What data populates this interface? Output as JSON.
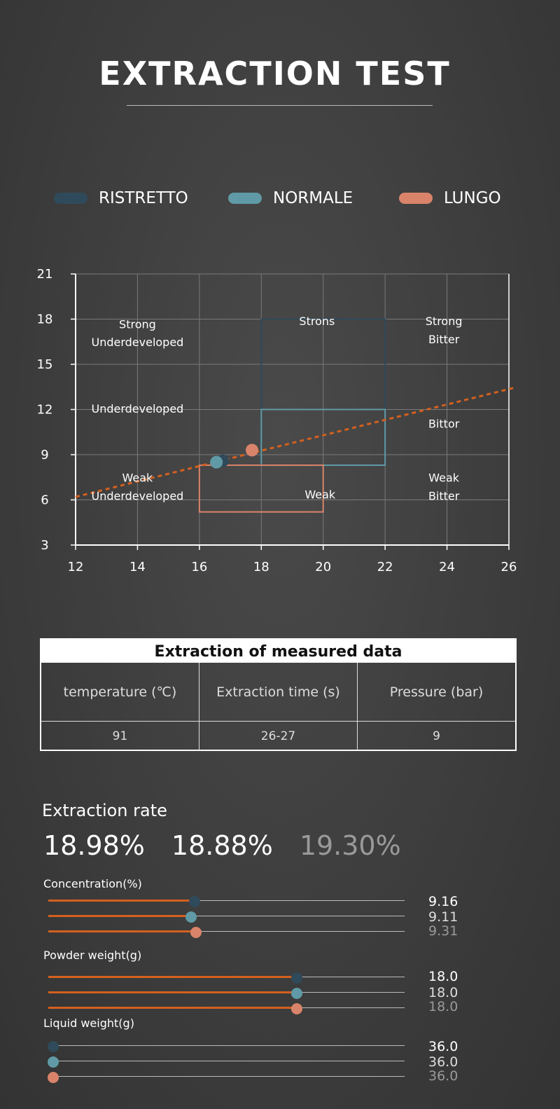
{
  "title": "EXTRACTION TEST",
  "legend": [
    {
      "label": "RISTRETTO",
      "color": "#2f4a5a"
    },
    {
      "label": "NORMALE",
      "color": "#5f9aa6"
    },
    {
      "label": "LUNGO",
      "color": "#d9846a"
    }
  ],
  "chart_data": {
    "type": "scatter",
    "xlim": [
      12,
      26
    ],
    "ylim": [
      3,
      21
    ],
    "x_ticks": [
      "12",
      "14",
      "16",
      "18",
      "20",
      "22",
      "24",
      "26"
    ],
    "y_ticks": [
      "3",
      "6",
      "9",
      "12",
      "15",
      "18",
      "21"
    ],
    "grid": true,
    "zones": [
      {
        "name": "RISTRETTO",
        "x": [
          18,
          22
        ],
        "y": [
          8.3,
          18
        ],
        "color": "#2f4a5a"
      },
      {
        "name": "NORMALE",
        "x": [
          18,
          22
        ],
        "y": [
          8.3,
          12
        ],
        "color": "#5f9aa6"
      },
      {
        "name": "LUNGO",
        "x": [
          16,
          20
        ],
        "y": [
          5.2,
          8.3
        ],
        "color": "#d9846a"
      }
    ],
    "trend_line": {
      "x": [
        12,
        26
      ],
      "y": [
        6.2,
        13.4
      ],
      "color": "#d4601e"
    },
    "points": [
      {
        "series": "RISTRETTO",
        "x": 16.75,
        "y": 8.6,
        "color": "#2f4a5a"
      },
      {
        "series": "NORMALE",
        "x": 16.55,
        "y": 8.5,
        "color": "#5f9aa6"
      },
      {
        "series": "LUNGO",
        "x": 17.7,
        "y": 9.3,
        "color": "#d9846a"
      }
    ],
    "annotations": [
      {
        "text": "Strong",
        "x": 14,
        "y": 17.4
      },
      {
        "text": "Underdeveloped",
        "x": 14,
        "y": 16.2
      },
      {
        "text": "Strons",
        "x": 19.8,
        "y": 17.6
      },
      {
        "text": "Strong",
        "x": 23.9,
        "y": 17.6
      },
      {
        "text": "Bitter",
        "x": 23.9,
        "y": 16.4
      },
      {
        "text": "Underdeveloped",
        "x": 14,
        "y": 11.8
      },
      {
        "text": "Bittor",
        "x": 23.9,
        "y": 10.8
      },
      {
        "text": "Weak",
        "x": 14,
        "y": 7.2
      },
      {
        "text": "Underdeveloped",
        "x": 14,
        "y": 6.0
      },
      {
        "text": "Weak",
        "x": 19.9,
        "y": 6.1
      },
      {
        "text": "Weak",
        "x": 23.9,
        "y": 7.2
      },
      {
        "text": "Bitter",
        "x": 23.9,
        "y": 6.0
      }
    ]
  },
  "table": {
    "title": "Extraction of measured data",
    "headers": [
      "temperature (℃)",
      "Extraction time (s)",
      "Pressure (bar)"
    ],
    "values": [
      "91",
      "26-27",
      "9"
    ]
  },
  "extraction_rate": {
    "label": "Extraction rate",
    "values": [
      {
        "text": "18.98%",
        "color": "#ffffff"
      },
      {
        "text": "18.88%",
        "color": "#ffffff"
      },
      {
        "text": "19.30%",
        "color": "#9a9a9a"
      }
    ]
  },
  "groups": [
    {
      "label": "Concentration(%)",
      "sliders": [
        {
          "value_text": "9.16",
          "fraction": 0.41,
          "thumb_color": "#2f4a5a",
          "text_color": "#ffffff"
        },
        {
          "value_text": "9.11",
          "fraction": 0.4,
          "thumb_color": "#5f9aa6",
          "text_color": "#dddddd"
        },
        {
          "value_text": "9.31",
          "fraction": 0.415,
          "thumb_color": "#d9846a",
          "text_color": "#999999"
        }
      ]
    },
    {
      "label": "Powder weight(g)",
      "sliders": [
        {
          "value_text": "18.0",
          "fraction": 0.698,
          "thumb_color": "#2f4a5a",
          "text_color": "#ffffff"
        },
        {
          "value_text": "18.0",
          "fraction": 0.698,
          "thumb_color": "#5f9aa6",
          "text_color": "#dddddd"
        },
        {
          "value_text": "18.0",
          "fraction": 0.698,
          "thumb_color": "#d9846a",
          "text_color": "#999999"
        }
      ]
    },
    {
      "label": "Liquid weight(g)",
      "sliders": [
        {
          "value_text": "36.0",
          "fraction": 0.013,
          "thumb_color": "#2f4a5a",
          "text_color": "#ffffff"
        },
        {
          "value_text": "36.0",
          "fraction": 0.013,
          "thumb_color": "#5f9aa6",
          "text_color": "#dddddd"
        },
        {
          "value_text": "36.0",
          "fraction": 0.013,
          "thumb_color": "#d9846a",
          "text_color": "#999999"
        }
      ]
    }
  ]
}
